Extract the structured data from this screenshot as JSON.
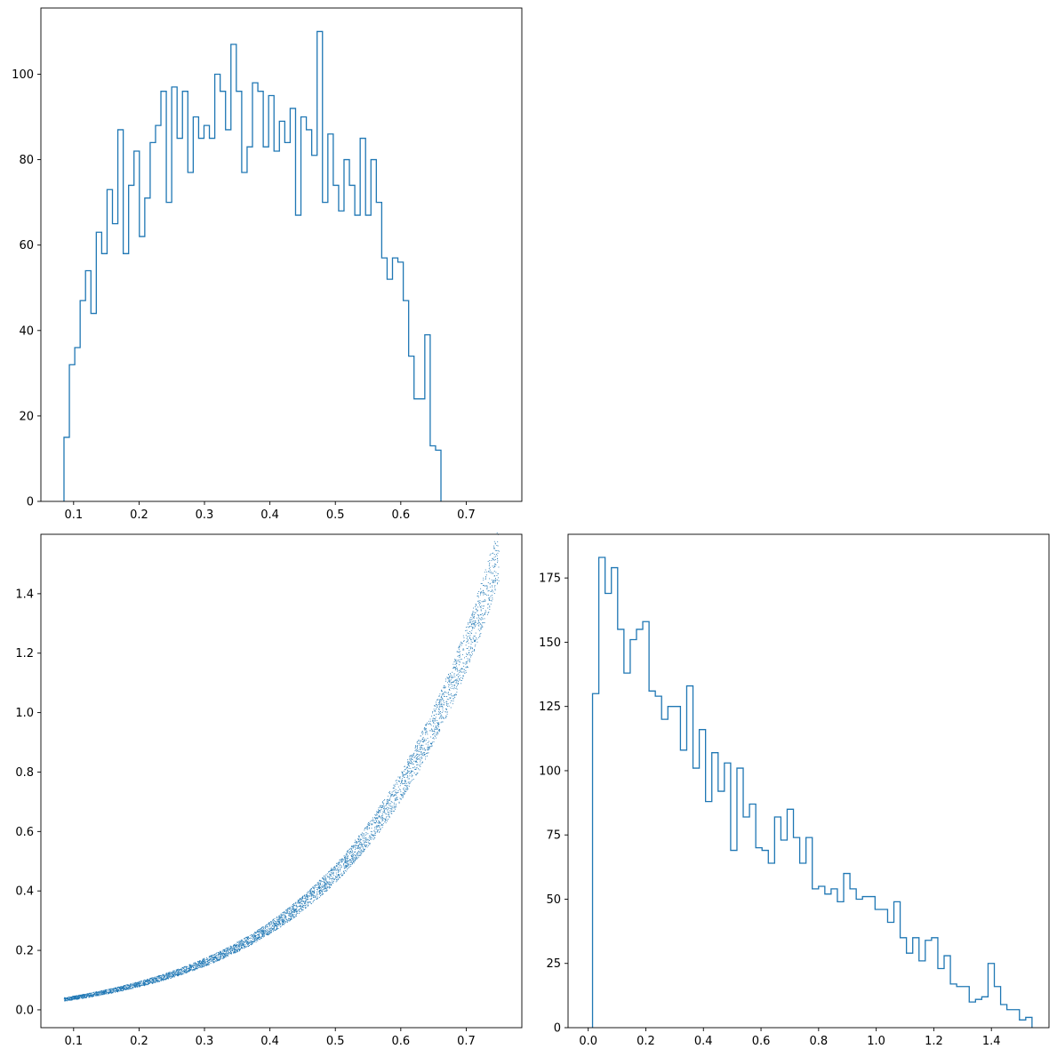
{
  "colors": {
    "series": "#1f77b4",
    "axes": "#000000",
    "background": "#ffffff"
  },
  "chart_data": [
    {
      "type": "histogram",
      "position": "top-left",
      "title": "",
      "xlabel": "",
      "ylabel": "",
      "grid": false,
      "xlim": [
        0.05,
        0.785
      ],
      "ylim": [
        0,
        115.5
      ],
      "xticks": [
        0.1,
        0.2,
        0.3,
        0.4,
        0.5,
        0.6,
        0.7
      ],
      "yticks": [
        0,
        20,
        40,
        60,
        80,
        100
      ],
      "bin_start": 0.0853,
      "bin_width": 0.00823,
      "counts": [
        15,
        32,
        36,
        47,
        54,
        44,
        63,
        58,
        73,
        65,
        87,
        58,
        74,
        82,
        62,
        71,
        84,
        88,
        96,
        70,
        97,
        85,
        96,
        77,
        90,
        85,
        88,
        85,
        100,
        96,
        87,
        107,
        96,
        77,
        83,
        98,
        96,
        83,
        95,
        82,
        89,
        84,
        92,
        67,
        90,
        87,
        81,
        110,
        70,
        86,
        74,
        68,
        80,
        74,
        67,
        85,
        67,
        80,
        70,
        57,
        52,
        57,
        56,
        47,
        34,
        24,
        24,
        39,
        13,
        12
      ]
    },
    {
      "type": "scatter",
      "position": "bottom-left",
      "title": "",
      "xlabel": "",
      "ylabel": "",
      "grid": false,
      "xlim": [
        0.05,
        0.785
      ],
      "ylim": [
        -0.06,
        1.6
      ],
      "xticks": [
        0.1,
        0.2,
        0.3,
        0.4,
        0.5,
        0.6,
        0.7
      ],
      "yticks": [
        0.0,
        0.2,
        0.4,
        0.6,
        0.8,
        1.0,
        1.2,
        1.4
      ],
      "x_range": [
        0.085,
        0.75
      ],
      "y_range": [
        0.015,
        1.53
      ],
      "n_points": 5000
    },
    {
      "type": "histogram",
      "position": "bottom-right",
      "title": "",
      "xlabel": "",
      "ylabel": "",
      "grid": false,
      "xlim": [
        -0.07,
        1.6
      ],
      "ylim": [
        0,
        192
      ],
      "xticks": [
        0.0,
        0.2,
        0.4,
        0.6,
        0.8,
        1.0,
        1.2,
        1.4
      ],
      "yticks": [
        0,
        25,
        50,
        75,
        100,
        125,
        150,
        175
      ],
      "bin_start": 0.015,
      "bin_width": 0.0218,
      "counts": [
        130,
        183,
        169,
        179,
        155,
        138,
        151,
        155,
        158,
        131,
        129,
        120,
        125,
        125,
        108,
        133,
        101,
        116,
        88,
        107,
        92,
        103,
        69,
        101,
        82,
        87,
        70,
        69,
        64,
        82,
        73,
        85,
        74,
        64,
        74,
        54,
        55,
        52,
        54,
        49,
        60,
        54,
        50,
        51,
        51,
        46,
        46,
        41,
        49,
        35,
        29,
        35,
        26,
        34,
        35,
        23,
        28,
        17,
        16,
        16,
        10,
        11,
        12,
        25,
        16,
        9,
        7,
        7,
        3,
        4
      ]
    }
  ]
}
